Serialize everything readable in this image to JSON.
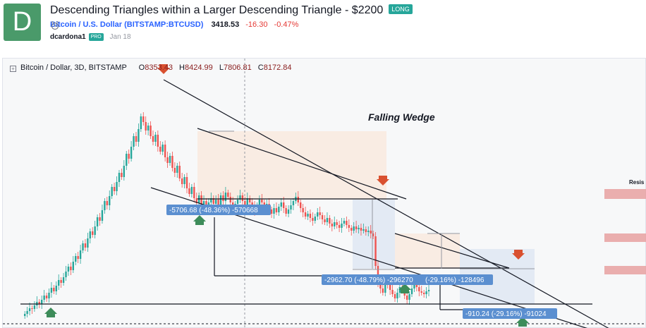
{
  "header": {
    "avatar_letter": "D",
    "title": "Descending Triangles within a Larger Descending Triangle - $2200",
    "side_badge": "LONG",
    "symbol_name": "Bitcoin / U.S. Dollar",
    "symbol_code": "(BITSTAMP:BTCUSD)",
    "price": "3418.53",
    "change": "-16.30",
    "change_pct": "-0.47%",
    "author": "dcardona1",
    "author_badge": "PRO",
    "date": "Jan 18"
  },
  "colors": {
    "up": "#26a69a",
    "down": "#ef5350",
    "arrow_up": "#3d8c5a",
    "arrow_down": "#d9502f",
    "measure_box": "#5b8fd0",
    "resistance": "#e8a1a1"
  },
  "chart_data": {
    "type": "candlestick",
    "legend": {
      "symbol": "Bitcoin / Dollar, 3D, BITSTAMP",
      "open_label": "O",
      "open": "8353.43",
      "high_label": "H",
      "high": "8424.99",
      "low_label": "L",
      "low": "7806.81",
      "close_label": "C",
      "close": "8172.84"
    },
    "annotations": {
      "pattern_label": "Falling Wedge",
      "resistance_label": "Resis",
      "measures": [
        "-5706.68 (-48.36%) -570668",
        "-2962.70 (-48.79%) -296270",
        "(-29.16%) -128496",
        "-910.24 (-29.16%) -91024"
      ]
    },
    "candles_close": [
      18,
      22,
      26,
      25,
      30,
      35,
      32,
      38,
      44,
      40,
      48,
      55,
      50,
      58,
      66,
      62,
      70,
      78,
      85,
      80,
      92,
      100,
      96,
      108,
      118,
      112,
      125,
      135,
      130,
      142,
      155,
      150,
      165,
      178,
      172,
      185,
      198,
      192,
      205,
      218,
      212,
      228,
      245,
      238,
      255,
      270,
      262,
      280,
      298,
      290,
      278,
      285,
      270,
      262,
      272,
      255,
      248,
      258,
      240,
      232,
      242,
      225,
      218,
      228,
      210,
      202,
      212,
      196,
      188,
      198,
      182,
      175,
      186,
      170,
      178,
      168,
      176,
      182,
      174,
      180,
      172,
      186,
      178,
      190,
      184,
      176,
      168,
      174,
      180,
      186,
      178,
      172,
      182,
      176,
      170,
      164,
      172,
      180,
      176,
      168,
      174,
      166,
      160,
      168,
      162,
      170,
      176,
      168,
      160,
      166,
      172,
      178,
      184,
      176,
      168,
      162,
      156,
      160,
      154,
      150,
      156,
      162,
      158,
      152,
      148,
      154,
      146,
      142,
      148,
      144,
      140,
      146,
      150,
      144,
      140,
      136,
      142,
      138,
      140,
      136,
      138,
      134,
      136,
      132,
      128,
      86,
      62,
      54,
      48,
      64,
      60,
      52,
      46,
      40,
      48,
      56,
      52,
      44,
      38,
      46,
      54,
      60,
      56,
      50,
      48,
      46,
      50,
      52
    ]
  }
}
